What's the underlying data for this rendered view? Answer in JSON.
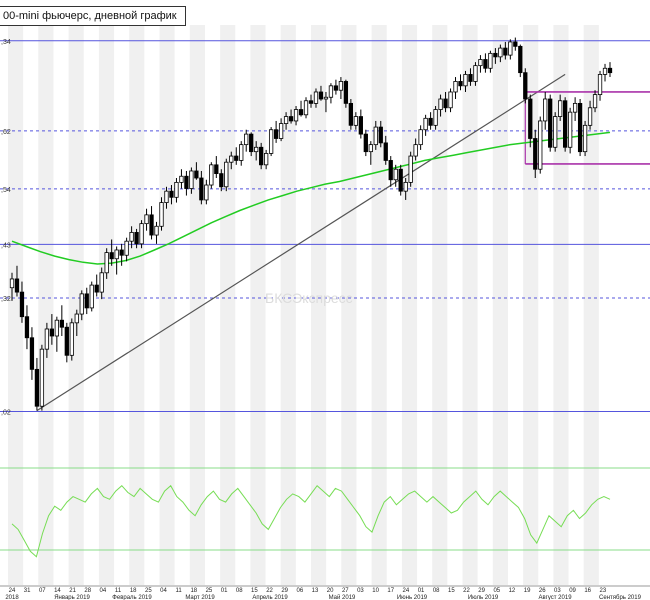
{
  "title": "00-mini фьючерс, дневной график",
  "watermark": "БКСЭкспресс",
  "colors": {
    "up": "#ffffff",
    "down": "#000000",
    "ma": "#22cc22",
    "trend": "#555555",
    "level": "#5555dd",
    "range": "#aa33aa",
    "indicator": "#77dd55",
    "band": "#88dd88",
    "stripe": "#f0f0f0"
  },
  "chart_data": {
    "type": "candlestick",
    "ylim": [
      2600,
      3050
    ],
    "levels": [
      {
        "value": 3026.34,
        "label": ",34"
      },
      {
        "value": 2923.62,
        "label": ",62"
      },
      {
        "value": 2857.54,
        "label": ",54"
      },
      {
        "value": 2794.43,
        "label": ",43"
      },
      {
        "value": 2733.32,
        "label": ",32"
      },
      {
        "value": 2604.02,
        "label": ",02"
      }
    ],
    "range_box": {
      "top": 2968,
      "bottom": 2886
    },
    "x_day_ticks": [
      "24",
      "31",
      "07",
      "14",
      "21",
      "28",
      "04",
      "11",
      "18",
      "25",
      "04",
      "11",
      "18",
      "25",
      "01",
      "08",
      "15",
      "22",
      "29",
      "06",
      "13",
      "20",
      "27",
      "03",
      "10",
      "17",
      "24",
      "01",
      "08",
      "15",
      "22",
      "29",
      "05",
      "12",
      "19",
      "26",
      "03",
      "09",
      "16",
      "23"
    ],
    "x_month_labels": [
      "2018",
      "Январь 2019",
      "Февраль 2019",
      "Март 2019",
      "Апрель 2019",
      "Май 2019",
      "Июнь 2019",
      "Июль 2019",
      "Август 2019",
      "Сентябрь 2019"
    ],
    "candles": [
      [
        2745,
        2762,
        2730,
        2755
      ],
      [
        2755,
        2770,
        2735,
        2740
      ],
      [
        2740,
        2752,
        2705,
        2712
      ],
      [
        2712,
        2725,
        2675,
        2688
      ],
      [
        2688,
        2700,
        2640,
        2652
      ],
      [
        2652,
        2665,
        2605,
        2610
      ],
      [
        2610,
        2680,
        2605,
        2675
      ],
      [
        2675,
        2705,
        2665,
        2698
      ],
      [
        2698,
        2715,
        2680,
        2690
      ],
      [
        2690,
        2712,
        2672,
        2708
      ],
      [
        2708,
        2725,
        2690,
        2700
      ],
      [
        2700,
        2705,
        2660,
        2668
      ],
      [
        2668,
        2710,
        2662,
        2705
      ],
      [
        2705,
        2720,
        2690,
        2715
      ],
      [
        2715,
        2742,
        2708,
        2738
      ],
      [
        2738,
        2745,
        2715,
        2722
      ],
      [
        2722,
        2752,
        2718,
        2748
      ],
      [
        2748,
        2760,
        2735,
        2740
      ],
      [
        2740,
        2768,
        2732,
        2762
      ],
      [
        2762,
        2790,
        2755,
        2785
      ],
      [
        2785,
        2800,
        2770,
        2778
      ],
      [
        2778,
        2792,
        2760,
        2788
      ],
      [
        2788,
        2795,
        2770,
        2782
      ],
      [
        2782,
        2802,
        2775,
        2798
      ],
      [
        2798,
        2815,
        2790,
        2808
      ],
      [
        2808,
        2812,
        2790,
        2795
      ],
      [
        2795,
        2822,
        2790,
        2818
      ],
      [
        2818,
        2835,
        2810,
        2828
      ],
      [
        2828,
        2838,
        2800,
        2805
      ],
      [
        2805,
        2820,
        2795,
        2815
      ],
      [
        2815,
        2848,
        2810,
        2842
      ],
      [
        2842,
        2860,
        2835,
        2855
      ],
      [
        2855,
        2862,
        2840,
        2848
      ],
      [
        2848,
        2870,
        2842,
        2865
      ],
      [
        2865,
        2880,
        2858,
        2872
      ],
      [
        2872,
        2878,
        2850,
        2858
      ],
      [
        2858,
        2882,
        2852,
        2878
      ],
      [
        2878,
        2888,
        2868,
        2870
      ],
      [
        2870,
        2878,
        2840,
        2845
      ],
      [
        2845,
        2868,
        2840,
        2862
      ],
      [
        2862,
        2888,
        2858,
        2885
      ],
      [
        2885,
        2895,
        2870,
        2875
      ],
      [
        2875,
        2880,
        2855,
        2860
      ],
      [
        2860,
        2892,
        2855,
        2888
      ],
      [
        2888,
        2900,
        2880,
        2895
      ],
      [
        2895,
        2905,
        2885,
        2890
      ],
      [
        2890,
        2912,
        2884,
        2908
      ],
      [
        2908,
        2925,
        2900,
        2920
      ],
      [
        2920,
        2922,
        2895,
        2900
      ],
      [
        2900,
        2912,
        2890,
        2905
      ],
      [
        2905,
        2910,
        2880,
        2885
      ],
      [
        2885,
        2902,
        2880,
        2898
      ],
      [
        2898,
        2928,
        2895,
        2925
      ],
      [
        2925,
        2935,
        2910,
        2915
      ],
      [
        2915,
        2938,
        2912,
        2932
      ],
      [
        2932,
        2945,
        2925,
        2940
      ],
      [
        2940,
        2948,
        2932,
        2935
      ],
      [
        2935,
        2952,
        2930,
        2948
      ],
      [
        2948,
        2958,
        2940,
        2942
      ],
      [
        2942,
        2962,
        2938,
        2958
      ],
      [
        2958,
        2965,
        2950,
        2955
      ],
      [
        2955,
        2972,
        2950,
        2968
      ],
      [
        2968,
        2975,
        2958,
        2960
      ],
      [
        2960,
        2968,
        2945,
        2962
      ],
      [
        2962,
        2978,
        2955,
        2975
      ],
      [
        2975,
        2982,
        2965,
        2970
      ],
      [
        2970,
        2985,
        2960,
        2980
      ],
      [
        2980,
        2982,
        2950,
        2955
      ],
      [
        2955,
        2960,
        2925,
        2930
      ],
      [
        2930,
        2945,
        2925,
        2940
      ],
      [
        2940,
        2948,
        2915,
        2920
      ],
      [
        2920,
        2925,
        2895,
        2900
      ],
      [
        2900,
        2912,
        2885,
        2908
      ],
      [
        2908,
        2935,
        2902,
        2928
      ],
      [
        2928,
        2935,
        2905,
        2910
      ],
      [
        2910,
        2918,
        2885,
        2890
      ],
      [
        2890,
        2895,
        2860,
        2868
      ],
      [
        2868,
        2885,
        2860,
        2880
      ],
      [
        2880,
        2885,
        2850,
        2855
      ],
      [
        2855,
        2870,
        2845,
        2865
      ],
      [
        2865,
        2900,
        2860,
        2895
      ],
      [
        2895,
        2915,
        2890,
        2908
      ],
      [
        2908,
        2930,
        2902,
        2925
      ],
      [
        2925,
        2942,
        2918,
        2938
      ],
      [
        2938,
        2945,
        2925,
        2930
      ],
      [
        2930,
        2952,
        2925,
        2948
      ],
      [
        2948,
        2965,
        2940,
        2960
      ],
      [
        2960,
        2968,
        2945,
        2950
      ],
      [
        2950,
        2972,
        2945,
        2968
      ],
      [
        2968,
        2985,
        2960,
        2980
      ],
      [
        2980,
        2988,
        2970,
        2975
      ],
      [
        2975,
        2992,
        2968,
        2988
      ],
      [
        2988,
        2995,
        2975,
        2980
      ],
      [
        2980,
        3002,
        2975,
        2998
      ],
      [
        2998,
        3010,
        2990,
        3005
      ],
      [
        3005,
        3012,
        2990,
        2995
      ],
      [
        2995,
        3015,
        2990,
        3012
      ],
      [
        3012,
        3018,
        3000,
        3008
      ],
      [
        3008,
        3022,
        3002,
        3018
      ],
      [
        3018,
        3025,
        3005,
        3010
      ],
      [
        3010,
        3028,
        3005,
        3025
      ],
      [
        3025,
        3030,
        3015,
        3020
      ],
      [
        3020,
        3022,
        2985,
        2990
      ],
      [
        2990,
        2995,
        2955,
        2960
      ],
      [
        2960,
        2965,
        2905,
        2915
      ],
      [
        2915,
        2925,
        2870,
        2880
      ],
      [
        2880,
        2940,
        2875,
        2935
      ],
      [
        2935,
        2968,
        2925,
        2960
      ],
      [
        2960,
        2965,
        2900,
        2905
      ],
      [
        2905,
        2945,
        2900,
        2940
      ],
      [
        2940,
        2965,
        2935,
        2958
      ],
      [
        2958,
        2962,
        2900,
        2905
      ],
      [
        2905,
        2950,
        2898,
        2945
      ],
      [
        2945,
        2962,
        2935,
        2955
      ],
      [
        2955,
        2960,
        2895,
        2900
      ],
      [
        2900,
        2935,
        2895,
        2930
      ],
      [
        2930,
        2958,
        2925,
        2950
      ],
      [
        2950,
        2970,
        2945,
        2965
      ],
      [
        2965,
        2992,
        2958,
        2988
      ],
      [
        2988,
        3000,
        2980,
        2995
      ],
      [
        2995,
        3002,
        2985,
        2990
      ]
    ],
    "ma": [
      2798,
      2792,
      2786,
      2781,
      2777,
      2774,
      2772,
      2773,
      2776,
      2781,
      2788,
      2795,
      2803,
      2811,
      2819,
      2826,
      2833,
      2839,
      2845,
      2850,
      2855,
      2859,
      2863,
      2866,
      2870,
      2874,
      2878,
      2882,
      2886,
      2890,
      2893,
      2896,
      2899,
      2902,
      2905,
      2908,
      2910,
      2912,
      2914,
      2916,
      2918,
      2920,
      2922
    ],
    "rsi": [
      42,
      38,
      30,
      22,
      18,
      35,
      48,
      55,
      52,
      58,
      62,
      60,
      58,
      64,
      68,
      62,
      60,
      66,
      70,
      65,
      62,
      68,
      64,
      60,
      58,
      66,
      70,
      62,
      58,
      52,
      48,
      56,
      62,
      66,
      60,
      58,
      64,
      68,
      62,
      56,
      50,
      42,
      38,
      46,
      54,
      60,
      64,
      62,
      58,
      64,
      70,
      66,
      62,
      68,
      66,
      60,
      54,
      48,
      40,
      36,
      48,
      58,
      62,
      56,
      60,
      64,
      66,
      62,
      58,
      62,
      58,
      54,
      50,
      52,
      58,
      62,
      66,
      60,
      56,
      62,
      66,
      62,
      58,
      54,
      46,
      34,
      28,
      38,
      48,
      44,
      40,
      48,
      52,
      46,
      50,
      56,
      60,
      62,
      60
    ]
  }
}
